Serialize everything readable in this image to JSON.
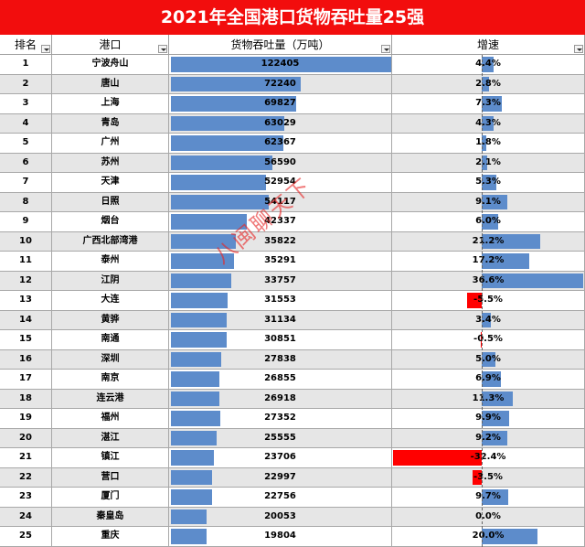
{
  "title": "2021年全国港口货物吞吐量25强",
  "headers": {
    "rank": "排名",
    "port": "港口",
    "volume": "货物吞吐量（万吨）",
    "growth": "增速"
  },
  "watermark": "八闽聊天下",
  "colors": {
    "title_bg": "#f20d0d",
    "bar": "#5d8ccb",
    "negative_bar": "#ff0000",
    "alt_row": "#e6e6e6"
  },
  "rows": [
    {
      "rank": "1",
      "port": "宁波舟山",
      "volume": "122405",
      "growth": "4.4%"
    },
    {
      "rank": "2",
      "port": "唐山",
      "volume": "72240",
      "growth": "2.8%"
    },
    {
      "rank": "3",
      "port": "上海",
      "volume": "69827",
      "growth": "7.3%"
    },
    {
      "rank": "4",
      "port": "青岛",
      "volume": "63029",
      "growth": "4.3%"
    },
    {
      "rank": "5",
      "port": "广州",
      "volume": "62367",
      "growth": "1.8%"
    },
    {
      "rank": "6",
      "port": "苏州",
      "volume": "56590",
      "growth": "2.1%"
    },
    {
      "rank": "7",
      "port": "天津",
      "volume": "52954",
      "growth": "5.3%"
    },
    {
      "rank": "8",
      "port": "日照",
      "volume": "54117",
      "growth": "9.1%"
    },
    {
      "rank": "9",
      "port": "烟台",
      "volume": "42337",
      "growth": "6.0%"
    },
    {
      "rank": "10",
      "port": "广西北部湾港",
      "volume": "35822",
      "growth": "21.2%"
    },
    {
      "rank": "11",
      "port": "泰州",
      "volume": "35291",
      "growth": "17.2%"
    },
    {
      "rank": "12",
      "port": "江阴",
      "volume": "33757",
      "growth": "36.6%"
    },
    {
      "rank": "13",
      "port": "大连",
      "volume": "31553",
      "growth": "-5.5%"
    },
    {
      "rank": "14",
      "port": "黄骅",
      "volume": "31134",
      "growth": "3.4%"
    },
    {
      "rank": "15",
      "port": "南通",
      "volume": "30851",
      "growth": "-0.5%"
    },
    {
      "rank": "16",
      "port": "深圳",
      "volume": "27838",
      "growth": "5.0%"
    },
    {
      "rank": "17",
      "port": "南京",
      "volume": "26855",
      "growth": "6.9%"
    },
    {
      "rank": "18",
      "port": "连云港",
      "volume": "26918",
      "growth": "11.3%"
    },
    {
      "rank": "19",
      "port": "福州",
      "volume": "27352",
      "growth": "9.9%"
    },
    {
      "rank": "20",
      "port": "湛江",
      "volume": "25555",
      "growth": "9.2%"
    },
    {
      "rank": "21",
      "port": "镇江",
      "volume": "23706",
      "growth": "-32.4%"
    },
    {
      "rank": "22",
      "port": "营口",
      "volume": "22997",
      "growth": "-3.5%"
    },
    {
      "rank": "23",
      "port": "厦门",
      "volume": "22756",
      "growth": "9.7%"
    },
    {
      "rank": "24",
      "port": "秦皇岛",
      "volume": "20053",
      "growth": "0.0%"
    },
    {
      "rank": "25",
      "port": "重庆",
      "volume": "19804",
      "growth": "20.0%"
    }
  ]
}
